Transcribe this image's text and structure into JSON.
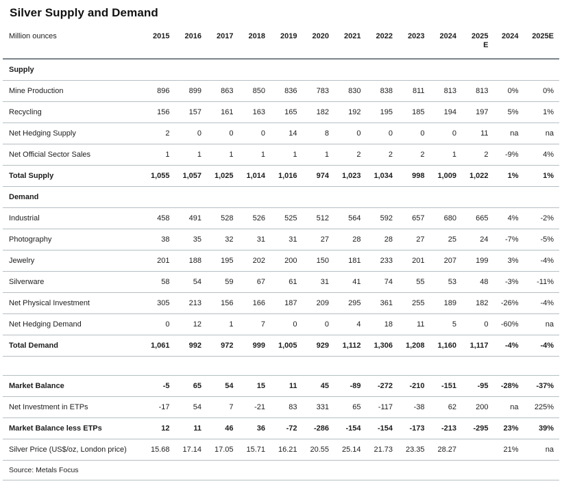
{
  "title": "Silver Supply and Demand",
  "unit_label": "Million ounces",
  "columns": [
    [
      "2015"
    ],
    [
      "2016"
    ],
    [
      "2017"
    ],
    [
      "2018"
    ],
    [
      "2019"
    ],
    [
      "2020"
    ],
    [
      "2021"
    ],
    [
      "2022"
    ],
    [
      "2023"
    ],
    [
      "2024"
    ],
    [
      "2025",
      "E"
    ],
    [
      "2024"
    ],
    [
      "2025E"
    ]
  ],
  "rows": [
    {
      "type": "section",
      "label": "Supply"
    },
    {
      "type": "data",
      "bold": false,
      "label": "Mine Production",
      "values": [
        "896",
        "899",
        "863",
        "850",
        "836",
        "783",
        "830",
        "838",
        "811",
        "813",
        "813",
        "0%",
        "0%"
      ]
    },
    {
      "type": "data",
      "bold": false,
      "label": "Recycling",
      "values": [
        "156",
        "157",
        "161",
        "163",
        "165",
        "182",
        "192",
        "195",
        "185",
        "194",
        "197",
        "5%",
        "1%"
      ]
    },
    {
      "type": "data",
      "bold": false,
      "label": "Net Hedging Supply",
      "values": [
        "2",
        "0",
        "0",
        "0",
        "14",
        "8",
        "0",
        "0",
        "0",
        "0",
        "11",
        "na",
        "na"
      ]
    },
    {
      "type": "data",
      "bold": false,
      "label": "Net Official Sector Sales",
      "values": [
        "1",
        "1",
        "1",
        "1",
        "1",
        "1",
        "2",
        "2",
        "2",
        "1",
        "2",
        "-9%",
        "4%"
      ]
    },
    {
      "type": "data",
      "bold": true,
      "label": "Total Supply",
      "values": [
        "1,055",
        "1,057",
        "1,025",
        "1,014",
        "1,016",
        "974",
        "1,023",
        "1,034",
        "998",
        "1,009",
        "1,022",
        "1%",
        "1%"
      ]
    },
    {
      "type": "section",
      "label": "Demand"
    },
    {
      "type": "data",
      "bold": false,
      "label": "Industrial",
      "values": [
        "458",
        "491",
        "528",
        "526",
        "525",
        "512",
        "564",
        "592",
        "657",
        "680",
        "665",
        "4%",
        "-2%"
      ]
    },
    {
      "type": "data",
      "bold": false,
      "label": "Photography",
      "values": [
        "38",
        "35",
        "32",
        "31",
        "31",
        "27",
        "28",
        "28",
        "27",
        "25",
        "24",
        "-7%",
        "-5%"
      ]
    },
    {
      "type": "data",
      "bold": false,
      "label": "Jewelry",
      "values": [
        "201",
        "188",
        "195",
        "202",
        "200",
        "150",
        "181",
        "233",
        "201",
        "207",
        "199",
        "3%",
        "-4%"
      ]
    },
    {
      "type": "data",
      "bold": false,
      "label": "Silverware",
      "values": [
        "58",
        "54",
        "59",
        "67",
        "61",
        "31",
        "41",
        "74",
        "55",
        "53",
        "48",
        "-3%",
        "-11%"
      ]
    },
    {
      "type": "data",
      "bold": false,
      "label": "Net Physical Investment",
      "values": [
        "305",
        "213",
        "156",
        "166",
        "187",
        "209",
        "295",
        "361",
        "255",
        "189",
        "182",
        "-26%",
        "-4%"
      ]
    },
    {
      "type": "data",
      "bold": false,
      "label": "Net Hedging Demand",
      "values": [
        "0",
        "12",
        "1",
        "7",
        "0",
        "0",
        "4",
        "18",
        "11",
        "5",
        "0",
        "-60%",
        "na"
      ]
    },
    {
      "type": "data",
      "bold": true,
      "label": "Total Demand",
      "values": [
        "1,061",
        "992",
        "972",
        "999",
        "1,005",
        "929",
        "1,112",
        "1,306",
        "1,208",
        "1,160",
        "1,117",
        "-4%",
        "-4%"
      ]
    },
    {
      "type": "spacer"
    },
    {
      "type": "data",
      "bold": true,
      "label": "Market Balance",
      "values": [
        "-5",
        "65",
        "54",
        "15",
        "11",
        "45",
        "-89",
        "-272",
        "-210",
        "-151",
        "-95",
        "-28%",
        "-37%"
      ]
    },
    {
      "type": "data",
      "bold": false,
      "label": "Net Investment in ETPs",
      "values": [
        "-17",
        "54",
        "7",
        "-21",
        "83",
        "331",
        "65",
        "-117",
        "-38",
        "62",
        "200",
        "na",
        "225%"
      ]
    },
    {
      "type": "data",
      "bold": true,
      "label": "Market Balance less ETPs",
      "values": [
        "12",
        "11",
        "46",
        "36",
        "-72",
        "-286",
        "-154",
        "-154",
        "-173",
        "-213",
        "-295",
        "23%",
        "39%"
      ]
    },
    {
      "type": "data",
      "bold": false,
      "label": "Silver Price (US$/oz, London price)",
      "values": [
        "15.68",
        "17.14",
        "17.05",
        "15.71",
        "16.21",
        "20.55",
        "25.14",
        "21.73",
        "23.35",
        "28.27",
        "",
        "21%",
        "na"
      ]
    },
    {
      "type": "source",
      "label": "Source: Metals Focus"
    }
  ]
}
